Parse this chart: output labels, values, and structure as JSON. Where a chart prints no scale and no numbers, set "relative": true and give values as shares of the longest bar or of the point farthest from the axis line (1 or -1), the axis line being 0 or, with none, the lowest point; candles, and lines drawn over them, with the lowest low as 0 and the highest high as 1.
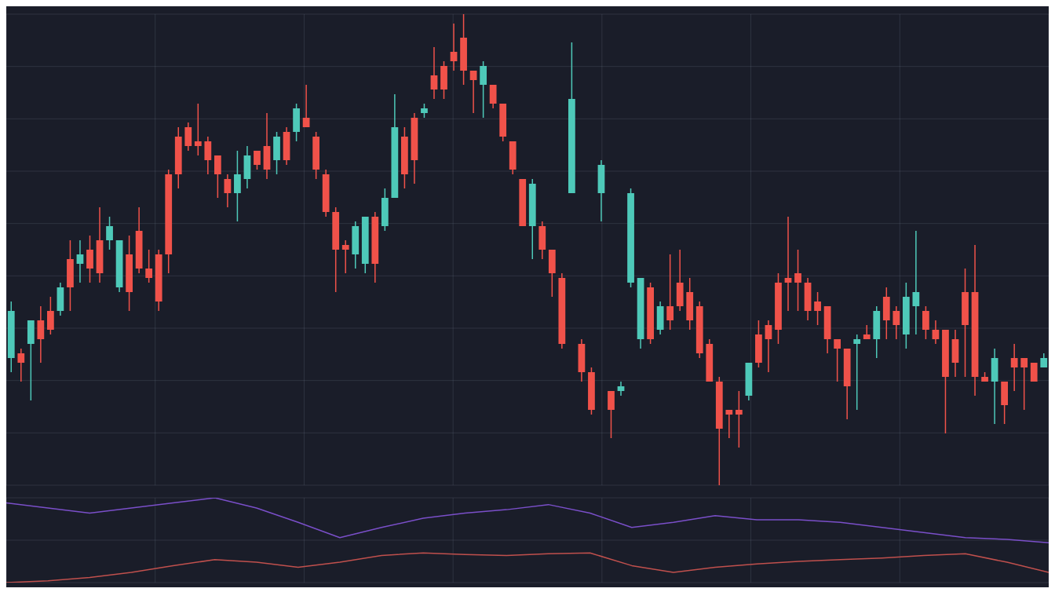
{
  "chart_data": [
    {
      "type": "candlestick",
      "relative": true,
      "grid": true,
      "categories": [
        null,
        null,
        null,
        null,
        null,
        null,
        null,
        null,
        null,
        null,
        null,
        null,
        null,
        null,
        null,
        null,
        null,
        null,
        null,
        null,
        null,
        null,
        null,
        null,
        null,
        null,
        null,
        null,
        null,
        null,
        null,
        null,
        null,
        null,
        null,
        null,
        null,
        null,
        null,
        null,
        null,
        null,
        null,
        null,
        null,
        null,
        null,
        null,
        null,
        null,
        null,
        null,
        null,
        null,
        null,
        null,
        null,
        null,
        null,
        null,
        null,
        null,
        null,
        null,
        null,
        null,
        null,
        null,
        null,
        null,
        null,
        null,
        null,
        null,
        null,
        null,
        null,
        null,
        null,
        null,
        null,
        null,
        null,
        null,
        null,
        null,
        null,
        null,
        null,
        null,
        null,
        null,
        null,
        null,
        null,
        null,
        null,
        null,
        null,
        null,
        null,
        null,
        null,
        null,
        null,
        null
      ],
      "ohlc": [
        [
          0.27,
          0.39,
          0.24,
          0.37
        ],
        [
          0.28,
          0.29,
          0.22,
          0.26
        ],
        [
          0.3,
          0.35,
          0.18,
          0.35
        ],
        [
          0.35,
          0.38,
          0.26,
          0.31
        ],
        [
          0.37,
          0.4,
          0.32,
          0.33
        ],
        [
          0.37,
          0.43,
          0.36,
          0.42
        ],
        [
          0.48,
          0.52,
          0.37,
          0.42
        ],
        [
          0.47,
          0.52,
          0.43,
          0.49
        ],
        [
          0.5,
          0.53,
          0.43,
          0.46
        ],
        [
          0.52,
          0.59,
          0.43,
          0.45
        ],
        [
          0.52,
          0.57,
          0.5,
          0.55
        ],
        [
          0.42,
          0.52,
          0.41,
          0.52
        ],
        [
          0.49,
          0.53,
          0.37,
          0.41
        ],
        [
          0.54,
          0.59,
          0.45,
          0.46
        ],
        [
          0.46,
          0.5,
          0.43,
          0.44
        ],
        [
          0.49,
          0.5,
          0.37,
          0.39
        ],
        [
          0.66,
          0.67,
          0.45,
          0.49
        ],
        [
          0.74,
          0.76,
          0.63,
          0.66
        ],
        [
          0.76,
          0.77,
          0.71,
          0.72
        ],
        [
          0.73,
          0.81,
          0.7,
          0.72
        ],
        [
          0.73,
          0.74,
          0.66,
          0.69
        ],
        [
          0.7,
          0.7,
          0.61,
          0.66
        ],
        [
          0.65,
          0.66,
          0.59,
          0.62
        ],
        [
          0.62,
          0.71,
          0.56,
          0.66
        ],
        [
          0.65,
          0.72,
          0.63,
          0.7
        ],
        [
          0.71,
          0.71,
          0.67,
          0.68
        ],
        [
          0.72,
          0.79,
          0.65,
          0.67
        ],
        [
          0.69,
          0.75,
          0.66,
          0.74
        ],
        [
          0.75,
          0.76,
          0.68,
          0.69
        ],
        [
          0.75,
          0.81,
          0.73,
          0.8
        ],
        [
          0.78,
          0.85,
          0.76,
          0.76
        ],
        [
          0.74,
          0.75,
          0.65,
          0.67
        ],
        [
          0.66,
          0.67,
          0.57,
          0.58
        ],
        [
          0.58,
          0.59,
          0.41,
          0.5
        ],
        [
          0.51,
          0.52,
          0.45,
          0.5
        ],
        [
          0.49,
          0.56,
          0.46,
          0.55
        ],
        [
          0.47,
          0.57,
          0.45,
          0.57
        ],
        [
          0.57,
          0.58,
          0.43,
          0.47
        ],
        [
          0.55,
          0.63,
          0.54,
          0.61
        ],
        [
          0.61,
          0.83,
          0.61,
          0.76
        ],
        [
          0.74,
          0.76,
          0.63,
          0.66
        ],
        [
          0.78,
          0.79,
          0.64,
          0.69
        ],
        [
          0.79,
          0.81,
          0.78,
          0.8
        ],
        [
          0.87,
          0.93,
          0.82,
          0.84
        ],
        [
          0.89,
          0.9,
          0.82,
          0.84
        ],
        [
          0.92,
          0.98,
          0.88,
          0.9
        ],
        [
          0.95,
          1.0,
          0.85,
          0.88
        ],
        [
          0.88,
          0.88,
          0.79,
          0.86
        ],
        [
          0.85,
          0.9,
          0.78,
          0.89
        ],
        [
          0.85,
          0.85,
          0.8,
          0.81
        ],
        [
          0.81,
          0.81,
          0.73,
          0.74
        ],
        [
          0.73,
          0.73,
          0.66,
          0.67
        ],
        [
          0.65,
          0.65,
          0.55,
          0.55
        ],
        [
          0.55,
          0.65,
          0.48,
          0.64
        ],
        [
          0.55,
          0.56,
          0.48,
          0.5
        ],
        [
          0.5,
          0.5,
          0.4,
          0.45
        ],
        [
          0.44,
          0.45,
          0.29,
          0.3
        ],
        [
          0.62,
          0.94,
          0.62,
          0.82
        ],
        [
          0.3,
          0.31,
          0.22,
          0.24
        ],
        [
          0.24,
          0.25,
          0.15,
          0.16
        ],
        [
          0.62,
          0.69,
          0.56,
          0.68
        ],
        [
          0.2,
          0.2,
          0.1,
          0.16
        ],
        [
          0.2,
          0.22,
          0.19,
          0.21
        ],
        [
          0.43,
          0.63,
          0.42,
          0.62
        ],
        [
          0.31,
          0.44,
          0.29,
          0.44
        ],
        [
          0.42,
          0.43,
          0.3,
          0.31
        ],
        [
          0.33,
          0.39,
          0.32,
          0.38
        ],
        [
          0.38,
          0.49,
          0.33,
          0.35
        ],
        [
          0.43,
          0.5,
          0.37,
          0.38
        ],
        [
          0.41,
          0.44,
          0.33,
          0.35
        ],
        [
          0.38,
          0.39,
          0.27,
          0.28
        ],
        [
          0.3,
          0.31,
          0.22,
          0.22
        ],
        [
          0.22,
          0.23,
          0.0,
          0.12
        ],
        [
          0.16,
          0.16,
          0.1,
          0.15
        ],
        [
          0.16,
          0.2,
          0.08,
          0.15
        ],
        [
          0.19,
          0.26,
          0.18,
          0.26
        ],
        [
          0.32,
          0.35,
          0.25,
          0.26
        ],
        [
          0.34,
          0.35,
          0.24,
          0.31
        ],
        [
          0.43,
          0.45,
          0.3,
          0.33
        ],
        [
          0.44,
          0.57,
          0.37,
          0.43
        ],
        [
          0.45,
          0.5,
          0.37,
          0.43
        ],
        [
          0.43,
          0.44,
          0.35,
          0.37
        ],
        [
          0.39,
          0.41,
          0.34,
          0.37
        ],
        [
          0.38,
          0.38,
          0.28,
          0.31
        ],
        [
          0.31,
          0.31,
          0.22,
          0.29
        ],
        [
          0.29,
          0.29,
          0.14,
          0.21
        ],
        [
          0.3,
          0.32,
          0.16,
          0.31
        ],
        [
          0.32,
          0.34,
          0.31,
          0.31
        ],
        [
          0.31,
          0.38,
          0.27,
          0.37
        ],
        [
          0.4,
          0.42,
          0.31,
          0.35
        ],
        [
          0.37,
          0.38,
          0.31,
          0.34
        ],
        [
          0.32,
          0.43,
          0.29,
          0.4
        ],
        [
          0.38,
          0.54,
          0.32,
          0.41
        ],
        [
          0.37,
          0.38,
          0.31,
          0.33
        ],
        [
          0.33,
          0.35,
          0.3,
          0.31
        ],
        [
          0.33,
          0.33,
          0.11,
          0.23
        ],
        [
          0.31,
          0.33,
          0.23,
          0.26
        ],
        [
          0.41,
          0.46,
          0.23,
          0.34
        ],
        [
          0.41,
          0.51,
          0.19,
          0.23
        ],
        [
          0.23,
          0.24,
          0.22,
          0.22
        ],
        [
          0.22,
          0.29,
          0.13,
          0.27
        ],
        [
          0.22,
          0.22,
          0.13,
          0.17
        ],
        [
          0.27,
          0.3,
          0.2,
          0.25
        ],
        [
          0.27,
          0.27,
          0.16,
          0.25
        ],
        [
          0.26,
          0.26,
          0.22,
          0.22
        ],
        [
          0.25,
          0.28,
          0.25,
          0.27
        ]
      ],
      "colors": [
        "#4ec9b9",
        "#f0524a",
        "#4ec9b9",
        "#f0524a",
        "#f0524a",
        "#4ec9b9",
        "#f0524a",
        "#4ec9b9",
        "#f0524a",
        "#f0524a",
        "#4ec9b9",
        "#4ec9b9",
        "#f0524a",
        "#f0524a",
        "#f0524a",
        "#f0524a",
        "#f0524a",
        "#f0524a",
        "#f0524a",
        "#f0524a",
        "#f0524a",
        "#f0524a",
        "#f0524a",
        "#4ec9b9",
        "#4ec9b9",
        "#f0524a",
        "#f0524a",
        "#4ec9b9",
        "#f0524a",
        "#4ec9b9",
        "#f0524a",
        "#f0524a",
        "#f0524a",
        "#f0524a",
        "#f0524a",
        "#4ec9b9",
        "#4ec9b9",
        "#f0524a",
        "#4ec9b9",
        "#4ec9b9",
        "#f0524a",
        "#f0524a",
        "#4ec9b9",
        "#f0524a",
        "#f0524a",
        "#f0524a",
        "#f0524a",
        "#f0524a",
        "#4ec9b9",
        "#f0524a",
        "#f0524a",
        "#f0524a",
        "#f0524a",
        "#4ec9b9",
        "#f0524a",
        "#f0524a",
        "#f0524a",
        "#4ec9b9",
        "#f0524a",
        "#f0524a",
        "#4ec9b9",
        "#f0524a",
        "#4ec9b9",
        "#4ec9b9",
        "#4ec9b9",
        "#f0524a",
        "#4ec9b9",
        "#f0524a",
        "#f0524a",
        "#f0524a",
        "#f0524a",
        "#f0524a",
        "#f0524a",
        "#f0524a",
        "#f0524a",
        "#4ec9b9",
        "#f0524a",
        "#f0524a",
        "#f0524a",
        "#f0524a",
        "#f0524a",
        "#f0524a",
        "#f0524a",
        "#f0524a",
        "#f0524a",
        "#f0524a",
        "#4ec9b9",
        "#f0524a",
        "#4ec9b9",
        "#f0524a",
        "#f0524a",
        "#4ec9b9",
        "#4ec9b9",
        "#f0524a",
        "#f0524a",
        "#f0524a",
        "#f0524a",
        "#f0524a",
        "#f0524a",
        "#f0524a",
        "#4ec9b9",
        "#f0524a",
        "#f0524a",
        "#f0524a",
        "#f0524a",
        "#4ec9b9"
      ]
    },
    {
      "type": "line",
      "relative": true,
      "grid": true,
      "categories": [
        null,
        null,
        null,
        null,
        null,
        null,
        null,
        null,
        null,
        null,
        null,
        null,
        null,
        null,
        null,
        null,
        null,
        null,
        null,
        null,
        null,
        null,
        null,
        null,
        null,
        null
      ],
      "series": [
        {
          "color": "#7a4fc9",
          "values": [
            0.94,
            0.88,
            0.82,
            0.88,
            0.94,
            1.0,
            0.88,
            0.71,
            0.53,
            0.65,
            0.76,
            0.82,
            0.86,
            0.92,
            0.82,
            0.65,
            0.71,
            0.79,
            0.74,
            0.74,
            0.71,
            0.65,
            0.59,
            0.53,
            0.51,
            0.47
          ]
        },
        {
          "color": "#c0504d",
          "values": [
            0.0,
            0.02,
            0.06,
            0.12,
            0.2,
            0.27,
            0.24,
            0.18,
            0.24,
            0.32,
            0.35,
            0.33,
            0.32,
            0.34,
            0.35,
            0.2,
            0.12,
            0.18,
            0.22,
            0.25,
            0.27,
            0.29,
            0.32,
            0.34,
            0.24,
            0.12
          ]
        }
      ]
    }
  ]
}
